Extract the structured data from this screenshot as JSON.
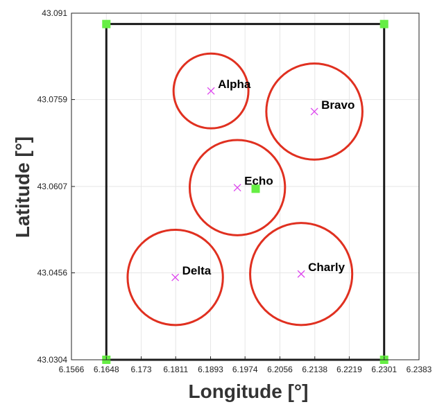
{
  "chart_data": {
    "type": "scatter",
    "xlabel": "Longitude [°]",
    "ylabel": "Latitude [°]",
    "xlim": [
      6.1566,
      6.2383
    ],
    "ylim": [
      43.0304,
      43.091
    ],
    "x_ticks": [
      "6.1566",
      "6.1648",
      "6.173",
      "6.1811",
      "6.1893",
      "6.1974",
      "6.2056",
      "6.2138",
      "6.2219",
      "6.2301",
      "6.2383"
    ],
    "x_tick_values": [
      6.1566,
      6.1648,
      6.173,
      6.1811,
      6.1893,
      6.1974,
      6.2056,
      6.2138,
      6.2219,
      6.2301,
      6.2383
    ],
    "y_ticks": [
      "43.0304",
      "43.0456",
      "43.0607",
      "43.0759",
      "43.091"
    ],
    "y_tick_values": [
      43.0304,
      43.0456,
      43.0607,
      43.0759,
      43.091
    ],
    "grid": true,
    "boundary": {
      "color": "#1a1a1a",
      "corners": [
        {
          "x": 6.1648,
          "y": 43.0304
        },
        {
          "x": 6.2301,
          "y": 43.0304
        },
        {
          "x": 6.2301,
          "y": 43.0891
        },
        {
          "x": 6.1648,
          "y": 43.0891
        }
      ]
    },
    "green_markers": {
      "color": "#66ee44",
      "points": [
        {
          "x": 6.1648,
          "y": 43.0891
        },
        {
          "x": 6.2301,
          "y": 43.0891
        },
        {
          "x": 6.1648,
          "y": 43.0304
        },
        {
          "x": 6.2301,
          "y": 43.0304
        },
        {
          "x": 6.1999,
          "y": 43.0603
        }
      ]
    },
    "circle_color": "#e03020",
    "marker_color": "#dd44ee",
    "points": [
      {
        "label": "Alpha",
        "x": 6.1894,
        "y": 43.0774,
        "radius": 0.0088
      },
      {
        "label": "Bravo",
        "x": 6.2137,
        "y": 43.0738,
        "radius": 0.0113
      },
      {
        "label": "Echo",
        "x": 6.1956,
        "y": 43.0605,
        "radius": 0.0112
      },
      {
        "label": "Delta",
        "x": 6.181,
        "y": 43.0448,
        "radius": 0.0112
      },
      {
        "label": "Charly",
        "x": 6.2106,
        "y": 43.0454,
        "radius": 0.012
      }
    ]
  }
}
